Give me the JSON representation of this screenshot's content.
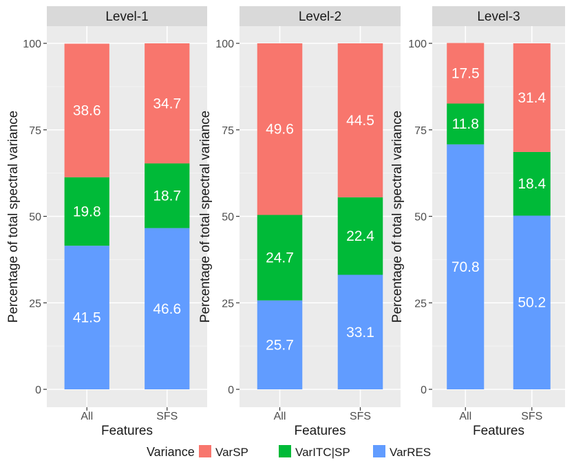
{
  "chart_data": {
    "type": "bar",
    "stacked": true,
    "panel_label_prefix": "",
    "ylabel": "Percentage of total spectral variance",
    "xlabel": "Features",
    "categories": [
      "All",
      "SFS"
    ],
    "y_ticks": [
      0,
      25,
      50,
      75,
      100
    ],
    "ylim": [
      0,
      100
    ],
    "grid": true,
    "legend": {
      "title": "Variance",
      "placement": "bottom",
      "entries": [
        {
          "name": "VarSP",
          "color": "#F8766D"
        },
        {
          "name": "VarITC|SP",
          "color": "#00BA38"
        },
        {
          "name": "VarRES",
          "color": "#619CFF"
        }
      ]
    },
    "panels": [
      {
        "title": "Level-1",
        "series": [
          {
            "name": "VarRES",
            "values": [
              41.5,
              46.6
            ]
          },
          {
            "name": "VarITC|SP",
            "values": [
              19.8,
              18.7
            ]
          },
          {
            "name": "VarSP",
            "values": [
              38.6,
              34.7
            ]
          }
        ]
      },
      {
        "title": "Level-2",
        "series": [
          {
            "name": "VarRES",
            "values": [
              25.7,
              33.1
            ]
          },
          {
            "name": "VarITC|SP",
            "values": [
              24.7,
              22.4
            ]
          },
          {
            "name": "VarSP",
            "values": [
              49.6,
              44.5
            ]
          }
        ]
      },
      {
        "title": "Level-3",
        "series": [
          {
            "name": "VarRES",
            "values": [
              70.8,
              50.2
            ]
          },
          {
            "name": "VarITC|SP",
            "values": [
              11.8,
              18.4
            ]
          },
          {
            "name": "VarSP",
            "values": [
              17.5,
              31.4
            ]
          }
        ]
      }
    ],
    "colors": {
      "panel_bg": "#EBEBEB",
      "strip_bg": "#D9D9D9",
      "grid_major": "#FFFFFF",
      "grid_minor": "#F4F4F4",
      "bar_label": "#FFFFFF",
      "axis_text": "#4D4D4D",
      "title_text": "#1A1A1A"
    }
  }
}
